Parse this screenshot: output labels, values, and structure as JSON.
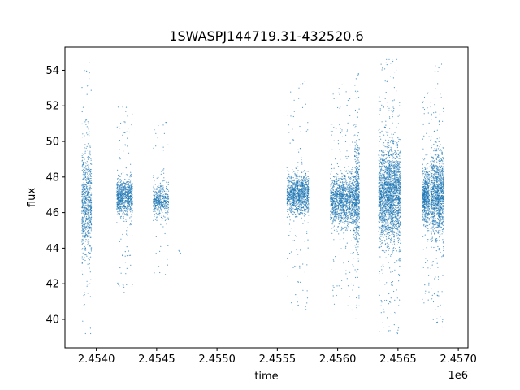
{
  "chart_data": {
    "type": "scatter",
    "title": "1SWASPJ144719.31-432520.6",
    "xlabel": "time",
    "ylabel": "flux",
    "x_offset_label": "1e6",
    "xlim": [
      2453740,
      2457080
    ],
    "ylim": [
      38.4,
      55.3
    ],
    "x_ticks": [
      2454000,
      2454500,
      2455000,
      2455500,
      2456000,
      2456500,
      2457000
    ],
    "x_tick_labels": [
      "2.4540",
      "2.4545",
      "2.4550",
      "2.4555",
      "2.4560",
      "2.4565",
      "2.4570"
    ],
    "y_ticks": [
      40,
      42,
      44,
      46,
      48,
      50,
      52,
      54
    ],
    "y_tick_labels": [
      "40",
      "42",
      "44",
      "46",
      "48",
      "50",
      "52",
      "54"
    ],
    "grid": false,
    "color": "#1f77b4",
    "series": [
      {
        "segments": [
          {
            "x_start": 2453880,
            "x_end": 2453960,
            "y_center": 46.5,
            "core_spread": 3.0,
            "outlier_spread": 8.0,
            "points": 700
          },
          {
            "x_start": 2454170,
            "x_end": 2454300,
            "y_center": 46.9,
            "core_spread": 1.0,
            "outlier_spread": 5.5,
            "points": 800
          },
          {
            "x_start": 2454470,
            "x_end": 2454600,
            "y_center": 46.7,
            "core_spread": 0.9,
            "outlier_spread": 4.5,
            "points": 450
          },
          {
            "x_start": 2454680,
            "x_end": 2454700,
            "y_center": 43.8,
            "core_spread": 0.2,
            "outlier_spread": 0.3,
            "points": 4
          },
          {
            "x_start": 2455580,
            "x_end": 2455760,
            "y_center": 47.0,
            "core_spread": 1.1,
            "outlier_spread": 6.5,
            "points": 1100
          },
          {
            "x_start": 2455940,
            "x_end": 2456140,
            "y_center": 46.7,
            "core_spread": 1.4,
            "outlier_spread": 6.5,
            "points": 1300
          },
          {
            "x_start": 2456140,
            "x_end": 2456180,
            "y_center": 47.0,
            "core_spread": 2.8,
            "outlier_spread": 7.0,
            "points": 500
          },
          {
            "x_start": 2456340,
            "x_end": 2456520,
            "y_center": 47.0,
            "core_spread": 2.6,
            "outlier_spread": 8.0,
            "points": 2200
          },
          {
            "x_start": 2456700,
            "x_end": 2456760,
            "y_center": 46.9,
            "core_spread": 1.5,
            "outlier_spread": 6.0,
            "points": 600
          },
          {
            "x_start": 2456770,
            "x_end": 2456880,
            "y_center": 47.0,
            "core_spread": 2.2,
            "outlier_spread": 7.5,
            "points": 1200
          }
        ]
      }
    ]
  }
}
